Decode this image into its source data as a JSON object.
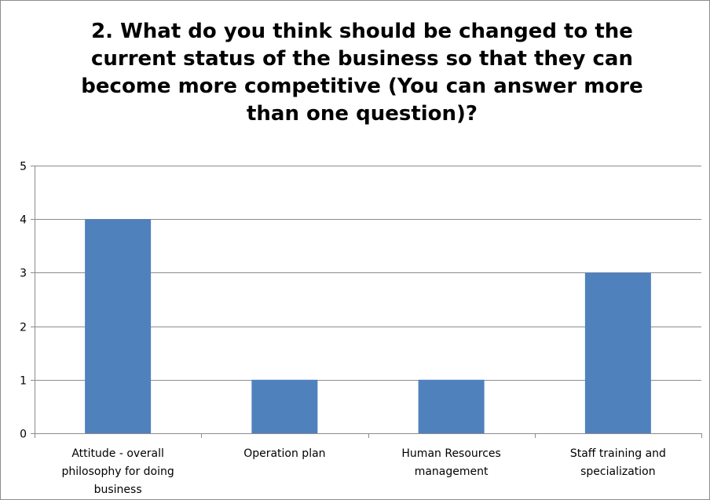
{
  "chart_data": {
    "type": "bar",
    "title_lines": [
      "2. What do you think should be changed to the",
      "current status of the business so that they can",
      "become more competitive (You can answer more",
      "than one question)?"
    ],
    "categories": [
      [
        "Attitude - overall",
        "philosophy for doing",
        "business"
      ],
      [
        "Operation plan"
      ],
      [
        "Human Resources",
        "management"
      ],
      [
        "Staff training and",
        "specialization"
      ]
    ],
    "values": [
      4,
      1,
      1,
      3
    ],
    "ylim": [
      0,
      5
    ],
    "yticks": [
      "0",
      "1",
      "2",
      "3",
      "4",
      "5"
    ],
    "grid": true,
    "legend": "none",
    "bar_color": "#4f81bd",
    "grid_color": "#8c8c8c"
  }
}
